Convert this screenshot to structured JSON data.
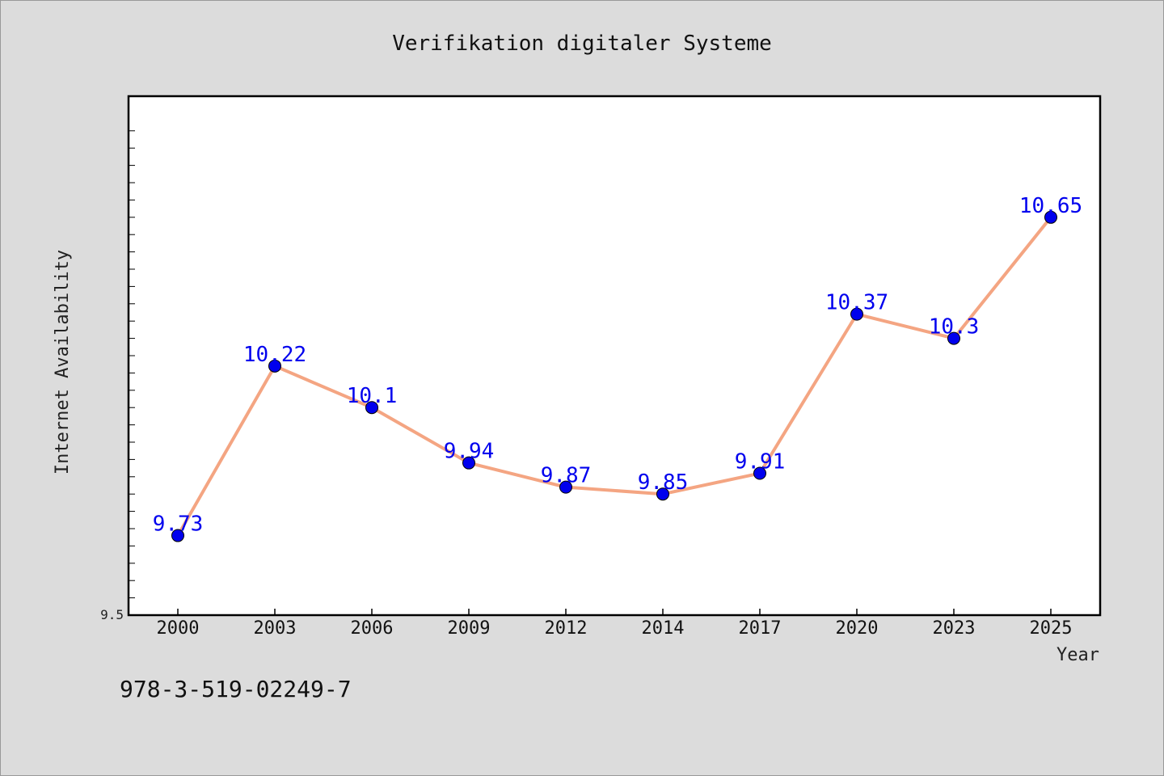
{
  "chart_data": {
    "type": "line",
    "title": "Verifikation digitaler Systeme",
    "xlabel": "Year",
    "ylabel": "Internet Availability",
    "categories": [
      "2000",
      "2003",
      "2006",
      "2009",
      "2012",
      "2014",
      "2017",
      "2020",
      "2023",
      "2025"
    ],
    "series": [
      {
        "values": [
          9.73,
          10.22,
          10.1,
          9.94,
          9.87,
          9.85,
          9.91,
          10.37,
          10.3,
          10.65
        ],
        "data_labels": [
          "9.73",
          "10.22",
          "10.1",
          "9.94",
          "9.87",
          "9.85",
          "9.91",
          "10.37",
          "10.3",
          "10.65"
        ]
      }
    ],
    "ylim": [
      9.5,
      11.0
    ],
    "yticks_labeled": [
      "9.5"
    ],
    "grid": false,
    "colors": {
      "line": "#f4a582",
      "marker": "#0000ee",
      "data_label": "#0000ee",
      "background": "#dcdcdc",
      "plot_area": "#ffffff"
    }
  },
  "footer": {
    "isbn": "978-3-519-02249-7"
  }
}
